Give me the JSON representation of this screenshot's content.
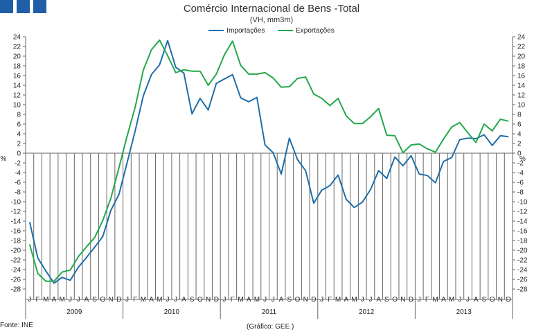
{
  "header": {
    "title": "Comércio Internacional de Bens -Total",
    "subtitle": "(VH, mm3m)"
  },
  "footer": {
    "source": "Fonte: INE",
    "credit": "(Gráfico: GEE )"
  },
  "colors": {
    "logo": "#1f5fa8",
    "importacoes": "#1f6ea8",
    "exportacoes": "#22a84a"
  },
  "chart_data": {
    "type": "line",
    "ylabel_left": "%",
    "ylabel_right": "%",
    "ylim": [
      -28,
      24
    ],
    "ytick_step": 2,
    "grid": false,
    "legend_position": "top-center",
    "month_labels": [
      "J",
      "F",
      "M",
      "A",
      "M",
      "J",
      "J",
      "A",
      "S",
      "O",
      "N",
      "D"
    ],
    "years": [
      "2009",
      "2010",
      "2011",
      "2012",
      "2013"
    ],
    "series": [
      {
        "name": "Importações",
        "color": "#1f6ea8",
        "values": [
          -14.2,
          -21.6,
          -24.3,
          -26.8,
          -25.6,
          -26.2,
          -23.5,
          -21.5,
          -19.4,
          -17.2,
          -11.8,
          -8.5,
          -2.0,
          4.6,
          11.8,
          16.2,
          18.2,
          23.2,
          17.7,
          16.5,
          8.1,
          11.3,
          8.9,
          14.4,
          15.3,
          16.2,
          11.4,
          10.6,
          11.5,
          1.7,
          0.1,
          -4.3,
          3.1,
          -1.3,
          -3.6,
          -10.3,
          -7.6,
          -6.7,
          -4.5,
          -9.5,
          -11.2,
          -10.1,
          -7.5,
          -3.6,
          -5.2,
          -0.8,
          -2.6,
          -0.5,
          -4.3,
          -4.6,
          -6.1,
          -1.7,
          -0.9,
          2.8,
          3.1,
          3.0,
          3.8,
          1.6,
          3.6,
          3.4
        ]
      },
      {
        "name": "Exportações",
        "color": "#22a84a",
        "values": [
          -18.8,
          -24.8,
          -26.4,
          -26.4,
          -24.5,
          -24.1,
          -21.3,
          -19.3,
          -17.4,
          -13.9,
          -9.3,
          -3.0,
          3.5,
          9.5,
          17.1,
          21.3,
          23.3,
          20.1,
          16.6,
          17.2,
          16.9,
          16.9,
          14.0,
          16.3,
          20.3,
          23.1,
          18.1,
          16.3,
          16.3,
          16.6,
          15.5,
          13.6,
          13.7,
          15.4,
          15.7,
          12.2,
          11.3,
          9.8,
          11.3,
          7.7,
          6.1,
          6.1,
          7.5,
          9.2,
          3.7,
          3.6,
          0.1,
          1.7,
          1.9,
          0.9,
          0.2,
          2.9,
          5.4,
          6.3,
          4.2,
          2.2,
          6.0,
          4.6,
          7.0,
          6.6
        ]
      }
    ]
  }
}
